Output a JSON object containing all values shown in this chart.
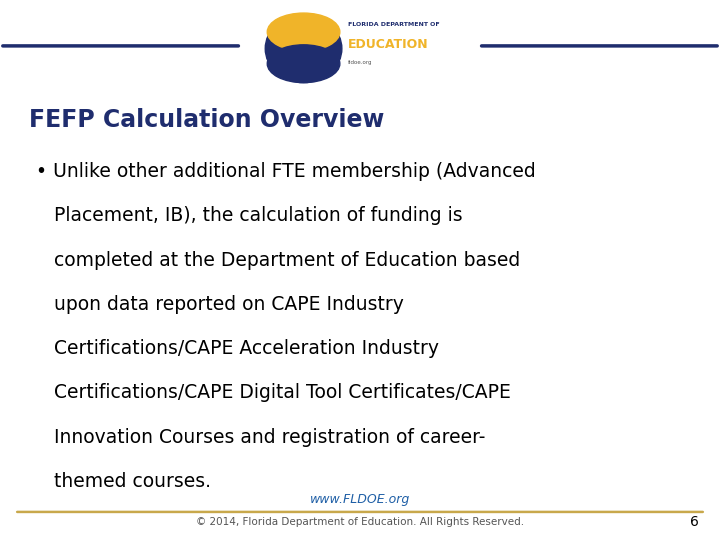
{
  "bg_color": "#ffffff",
  "title": "FEFP Calculation Overview",
  "title_color": "#1f2d6e",
  "title_fontsize": 17,
  "bullet_color": "#000000",
  "bullet_fontsize": 13.5,
  "header_line_color": "#1f2d6e",
  "footer_line_color": "#c8a84b",
  "footer_link": "www.FLDOE.org",
  "footer_link_color": "#1f5fa6",
  "footer_text": "© 2014, Florida Department of Education. All Rights Reserved.",
  "footer_text_color": "#555555",
  "page_number": "6",
  "page_number_color": "#000000",
  "bullet_lines": [
    "• Unlike other additional FTE membership (Advanced",
    "   Placement, IB), the calculation of funding is",
    "   completed at the Department of Education based",
    "   upon data reported on CAPE Industry",
    "   Certifications/CAPE Acceleration Industry",
    "   Certifications/CAPE Digital Tool Certificates/CAPE",
    "   Innovation Courses and registration of career-",
    "   themed courses."
  ]
}
